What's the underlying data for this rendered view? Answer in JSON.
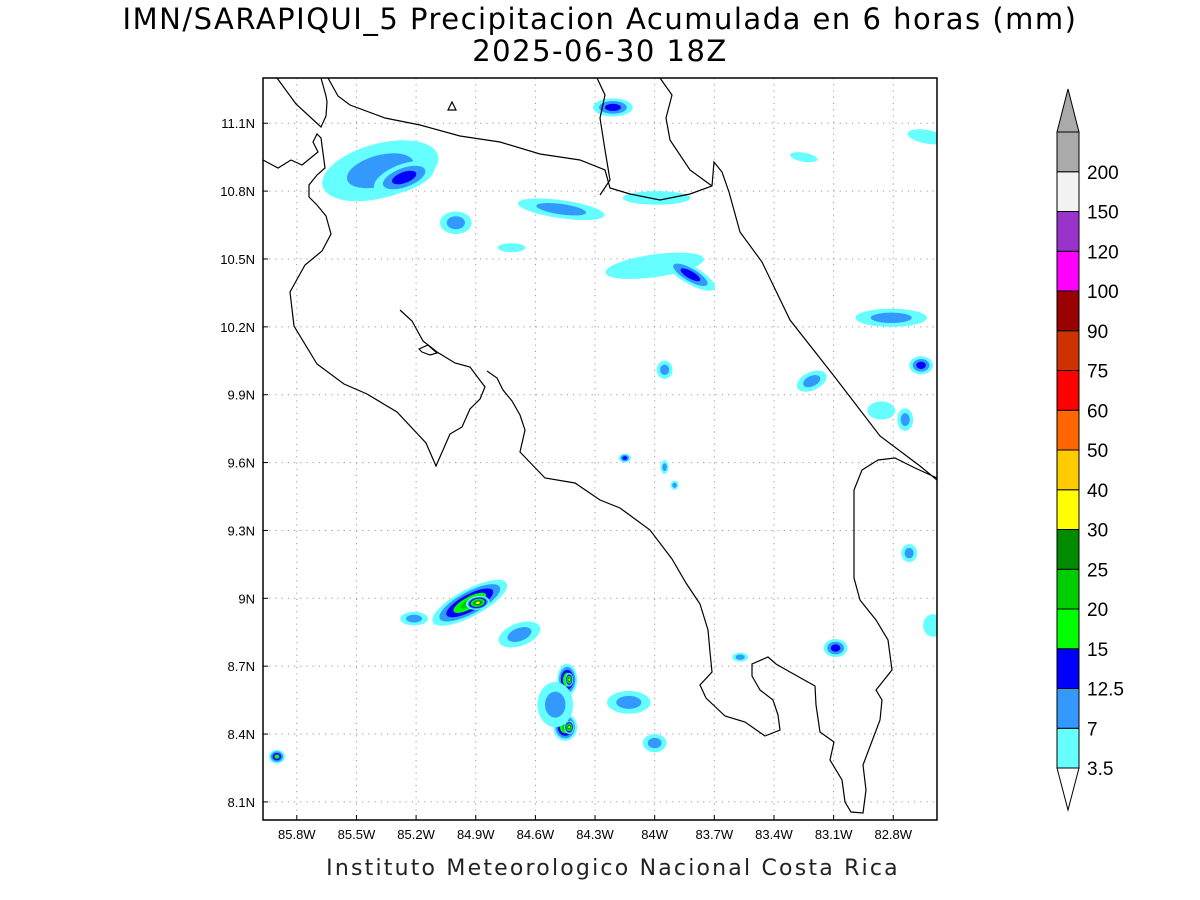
{
  "header": {
    "title_line1": "IMN/SARAPIQUI_5 Precipitacion Acumulada en 6 horas (mm)",
    "title_line2": "2025-06-30 18Z"
  },
  "footer": {
    "credit": "Instituto Meteorologico Nacional Costa Rica"
  },
  "map": {
    "lon_range": [
      -85.97,
      -82.58
    ],
    "lat_range": [
      8.02,
      11.3
    ],
    "lon_ticks": [
      {
        "value": -85.8,
        "label": "85.8W"
      },
      {
        "value": -85.5,
        "label": "85.5W"
      },
      {
        "value": -85.2,
        "label": "85.2W"
      },
      {
        "value": -84.9,
        "label": "84.9W"
      },
      {
        "value": -84.6,
        "label": "84.6W"
      },
      {
        "value": -84.3,
        "label": "84.3W"
      },
      {
        "value": -84.0,
        "label": "84W"
      },
      {
        "value": -83.7,
        "label": "83.7W"
      },
      {
        "value": -83.4,
        "label": "83.4W"
      },
      {
        "value": -83.1,
        "label": "83.1W"
      },
      {
        "value": -82.8,
        "label": "82.8W"
      }
    ],
    "lat_ticks": [
      {
        "value": 8.1,
        "label": "8.1N"
      },
      {
        "value": 8.4,
        "label": "8.4N"
      },
      {
        "value": 8.7,
        "label": "8.7N"
      },
      {
        "value": 9.0,
        "label": "9N"
      },
      {
        "value": 9.3,
        "label": "9.3N"
      },
      {
        "value": 9.6,
        "label": "9.6N"
      },
      {
        "value": 9.9,
        "label": "9.9N"
      },
      {
        "value": 10.2,
        "label": "10.2N"
      },
      {
        "value": 10.5,
        "label": "10.5N"
      },
      {
        "value": 10.8,
        "label": "10.8N"
      },
      {
        "value": 11.1,
        "label": "11.1N"
      }
    ],
    "grid": true
  },
  "colorbar": {
    "levels": [
      {
        "label": "3.5",
        "color": "#66ffff"
      },
      {
        "label": "7",
        "color": "#3399ff"
      },
      {
        "label": "12.5",
        "color": "#0000ff"
      },
      {
        "label": "15",
        "color": "#00ff00"
      },
      {
        "label": "20",
        "color": "#00cc00"
      },
      {
        "label": "25",
        "color": "#008c00"
      },
      {
        "label": "30",
        "color": "#ffff00"
      },
      {
        "label": "40",
        "color": "#ffcc00"
      },
      {
        "label": "50",
        "color": "#ff6600"
      },
      {
        "label": "60",
        "color": "#ff0000"
      },
      {
        "label": "75",
        "color": "#cc3300"
      },
      {
        "label": "90",
        "color": "#990000"
      },
      {
        "label": "100",
        "color": "#ff00ff"
      },
      {
        "label": "120",
        "color": "#9933cc"
      },
      {
        "label": "150",
        "color": "#f2f2f2"
      },
      {
        "label": "200",
        "color": "#aaaaaa"
      }
    ],
    "low_arrow_color": "#ffffff",
    "high_arrow_color": "#aaaaaa"
  },
  "precip_cells": [
    {
      "lon": -85.38,
      "lat": 10.89,
      "rx": 0.3,
      "ry": 0.12,
      "rot": 15,
      "level": 1
    },
    {
      "lon": -85.26,
      "lat": 10.86,
      "rx": 0.16,
      "ry": 0.06,
      "rot": 20,
      "level": 2
    },
    {
      "lon": -85.0,
      "lat": 10.66,
      "rx": 0.08,
      "ry": 0.05,
      "rot": 0,
      "level": 1
    },
    {
      "lon": -84.72,
      "lat": 10.55,
      "rx": 0.07,
      "ry": 0.02,
      "rot": 0,
      "level": 0
    },
    {
      "lon": -84.47,
      "lat": 10.72,
      "rx": 0.22,
      "ry": 0.04,
      "rot": -8,
      "level": 1
    },
    {
      "lon": -83.99,
      "lat": 10.77,
      "rx": 0.17,
      "ry": 0.03,
      "rot": 0,
      "level": 0
    },
    {
      "lon": -84.21,
      "lat": 11.17,
      "rx": 0.1,
      "ry": 0.04,
      "rot": 0,
      "level": 2
    },
    {
      "lon": -84.0,
      "lat": 10.47,
      "rx": 0.25,
      "ry": 0.05,
      "rot": 8,
      "level": 0
    },
    {
      "lon": -83.82,
      "lat": 10.43,
      "rx": 0.14,
      "ry": 0.04,
      "rot": -30,
      "level": 2
    },
    {
      "lon": -82.81,
      "lat": 10.24,
      "rx": 0.18,
      "ry": 0.04,
      "rot": 0,
      "level": 1
    },
    {
      "lon": -82.66,
      "lat": 10.03,
      "rx": 0.06,
      "ry": 0.04,
      "rot": 0,
      "level": 2
    },
    {
      "lon": -82.63,
      "lat": 11.04,
      "rx": 0.1,
      "ry": 0.03,
      "rot": -10,
      "level": 0
    },
    {
      "lon": -83.25,
      "lat": 10.95,
      "rx": 0.07,
      "ry": 0.02,
      "rot": -10,
      "level": 0
    },
    {
      "lon": -83.21,
      "lat": 9.96,
      "rx": 0.08,
      "ry": 0.04,
      "rot": 25,
      "level": 1
    },
    {
      "lon": -82.86,
      "lat": 9.83,
      "rx": 0.07,
      "ry": 0.04,
      "rot": 0,
      "level": 0
    },
    {
      "lon": -82.74,
      "lat": 9.79,
      "rx": 0.04,
      "ry": 0.05,
      "rot": 0,
      "level": 1
    },
    {
      "lon": -83.95,
      "lat": 10.01,
      "rx": 0.04,
      "ry": 0.04,
      "rot": 0,
      "level": 1
    },
    {
      "lon": -84.15,
      "lat": 9.62,
      "rx": 0.03,
      "ry": 0.02,
      "rot": 0,
      "level": 2
    },
    {
      "lon": -83.95,
      "lat": 9.58,
      "rx": 0.02,
      "ry": 0.03,
      "rot": 0,
      "level": 1
    },
    {
      "lon": -83.9,
      "lat": 9.5,
      "rx": 0.02,
      "ry": 0.02,
      "rot": 0,
      "level": 1
    },
    {
      "lon": -82.72,
      "lat": 9.2,
      "rx": 0.04,
      "ry": 0.04,
      "rot": 0,
      "level": 1
    },
    {
      "lon": -82.6,
      "lat": 8.88,
      "rx": 0.05,
      "ry": 0.05,
      "rot": 0,
      "level": 0
    },
    {
      "lon": -83.09,
      "lat": 8.78,
      "rx": 0.06,
      "ry": 0.04,
      "rot": 0,
      "level": 2
    },
    {
      "lon": -84.93,
      "lat": 8.98,
      "rx": 0.21,
      "ry": 0.06,
      "rot": 28,
      "level": 4
    },
    {
      "lon": -84.89,
      "lat": 8.98,
      "rx": 0.06,
      "ry": 0.03,
      "rot": 10,
      "level": 6
    },
    {
      "lon": -84.68,
      "lat": 8.84,
      "rx": 0.11,
      "ry": 0.05,
      "rot": 20,
      "level": 1
    },
    {
      "lon": -85.21,
      "lat": 8.91,
      "rx": 0.07,
      "ry": 0.03,
      "rot": 0,
      "level": 1
    },
    {
      "lon": -84.44,
      "lat": 8.64,
      "rx": 0.05,
      "ry": 0.07,
      "rot": 0,
      "level": 4
    },
    {
      "lon": -84.43,
      "lat": 8.64,
      "rx": 0.02,
      "ry": 0.03,
      "rot": 0,
      "level": 6
    },
    {
      "lon": -84.45,
      "lat": 8.43,
      "rx": 0.06,
      "ry": 0.06,
      "rot": 0,
      "level": 4
    },
    {
      "lon": -84.43,
      "lat": 8.43,
      "rx": 0.025,
      "ry": 0.03,
      "rot": 0,
      "level": 6
    },
    {
      "lon": -84.5,
      "lat": 8.53,
      "rx": 0.09,
      "ry": 0.1,
      "rot": 0,
      "level": 1
    },
    {
      "lon": -84.13,
      "lat": 8.54,
      "rx": 0.11,
      "ry": 0.05,
      "rot": 0,
      "level": 1
    },
    {
      "lon": -84.0,
      "lat": 8.36,
      "rx": 0.06,
      "ry": 0.04,
      "rot": 0,
      "level": 1
    },
    {
      "lon": -85.9,
      "lat": 8.3,
      "rx": 0.04,
      "ry": 0.03,
      "rot": 0,
      "level": 3
    },
    {
      "lon": -83.57,
      "lat": 8.74,
      "rx": 0.04,
      "ry": 0.02,
      "rot": 0,
      "level": 1
    }
  ]
}
